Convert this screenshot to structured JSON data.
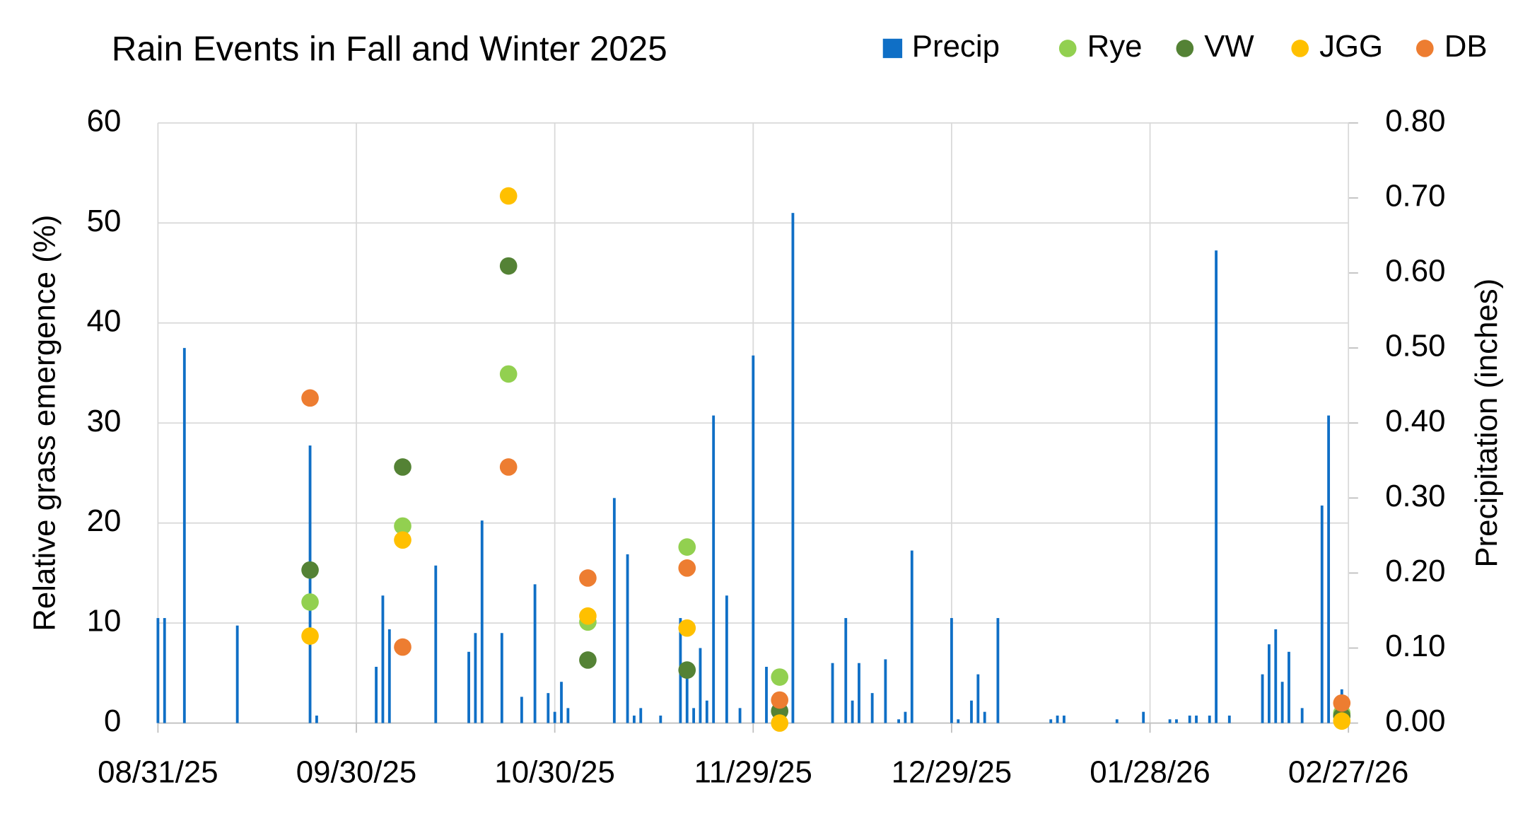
{
  "chart_data": {
    "type": "combo",
    "title": "Rain Events in Fall and Winter 2025",
    "y_label": "Relative grass emergence (%)",
    "y2_label": "Precipitation (inches)",
    "xlim": [
      "08/31/25",
      "02/27/26"
    ],
    "xticks": [
      "08/31/25",
      "09/30/25",
      "10/30/25",
      "11/29/25",
      "12/29/25",
      "01/28/26",
      "02/27/26"
    ],
    "ylim": [
      0,
      60
    ],
    "yticks": [
      0,
      10,
      20,
      30,
      40,
      50,
      60
    ],
    "y2lim": [
      0,
      0.8
    ],
    "y2ticks": [
      {
        "value": 0,
        "label": "0.00"
      },
      {
        "value": 0.1,
        "label": "0.10"
      },
      {
        "value": 0.2,
        "label": "0.20"
      },
      {
        "value": 0.3,
        "label": "0.30"
      },
      {
        "value": 0.4,
        "label": "0.40"
      },
      {
        "value": 0.5,
        "label": "0.50"
      },
      {
        "value": 0.6,
        "label": "0.60"
      },
      {
        "value": 0.7,
        "label": "0.70"
      },
      {
        "value": 0.8,
        "label": "0.80"
      }
    ],
    "grid": true,
    "legend": "top-right",
    "x": [
      "09/23/25",
      "10/07/25",
      "10/23/25",
      "11/04/25",
      "11/19/25",
      "12/03/25",
      "02/26/26"
    ],
    "series": [
      {
        "name": "Precip",
        "type": "bar",
        "axis": "y2",
        "color": "#0f6fc6",
        "x": [
          "08/31/25",
          "09/01/25",
          "09/04/25",
          "09/12/25",
          "09/23/25",
          "09/24/25",
          "10/03/25",
          "10/04/25",
          "10/05/25",
          "10/12/25",
          "10/17/25",
          "10/18/25",
          "10/19/25",
          "10/22/25",
          "10/25/25",
          "10/27/25",
          "10/29/25",
          "10/30/25",
          "10/31/25",
          "11/01/25",
          "11/08/25",
          "11/10/25",
          "11/11/25",
          "11/12/25",
          "11/15/25",
          "11/18/25",
          "11/19/25",
          "11/20/25",
          "11/21/25",
          "11/22/25",
          "11/23/25",
          "11/25/25",
          "11/27/25",
          "11/29/25",
          "12/01/25",
          "12/05/25",
          "12/11/25",
          "12/13/25",
          "12/14/25",
          "12/15/25",
          "12/17/25",
          "12/19/25",
          "12/21/25",
          "12/22/25",
          "12/23/25",
          "12/29/25",
          "12/30/25",
          "01/01/26",
          "01/02/26",
          "01/03/26",
          "01/05/26",
          "01/13/26",
          "01/14/26",
          "01/15/26",
          "01/23/26",
          "01/27/26",
          "01/31/26",
          "02/01/26",
          "02/03/26",
          "02/04/26",
          "02/06/26",
          "02/07/26",
          "02/09/26",
          "02/14/26",
          "02/15/26",
          "02/16/26",
          "02/17/26",
          "02/18/26",
          "02/20/26",
          "02/23/26",
          "02/24/26",
          "02/26/26"
        ],
        "values": [
          0.14,
          0.14,
          0.5,
          0.13,
          0.37,
          0.01,
          0.075,
          0.17,
          0.125,
          0.21,
          0.095,
          0.12,
          0.27,
          0.12,
          0.035,
          0.185,
          0.04,
          0.015,
          0.055,
          0.02,
          0.3,
          0.225,
          0.01,
          0.02,
          0.01,
          0.14,
          0.08,
          0.02,
          0.1,
          0.03,
          0.41,
          0.17,
          0.02,
          0.49,
          0.075,
          0.68,
          0.08,
          0.14,
          0.03,
          0.08,
          0.04,
          0.085,
          0.005,
          0.015,
          0.23,
          0.14,
          0.005,
          0.03,
          0.065,
          0.015,
          0.14,
          0.005,
          0.01,
          0.01,
          0.005,
          0.015,
          0.005,
          0.005,
          0.01,
          0.01,
          0.01,
          0.63,
          0.01,
          0.065,
          0.105,
          0.125,
          0.055,
          0.095,
          0.02,
          0.29,
          0.41,
          0.045
        ]
      },
      {
        "name": "Rye",
        "type": "scatter",
        "color": "#92d050",
        "values": [
          12.1,
          19.7,
          34.9,
          10.1,
          17.6,
          4.6,
          1.0
        ]
      },
      {
        "name": "VW",
        "type": "scatter",
        "color": "#548235",
        "values": [
          15.3,
          25.6,
          45.7,
          6.3,
          5.3,
          1.2,
          0.7
        ]
      },
      {
        "name": "JGG",
        "type": "scatter",
        "color": "#ffc000",
        "values": [
          8.7,
          18.3,
          52.7,
          10.7,
          9.5,
          0.0,
          0.2
        ]
      },
      {
        "name": "DB",
        "type": "scatter",
        "color": "#ed7d31",
        "values": [
          32.5,
          7.6,
          25.6,
          14.5,
          15.5,
          2.3,
          2.0
        ]
      }
    ]
  }
}
